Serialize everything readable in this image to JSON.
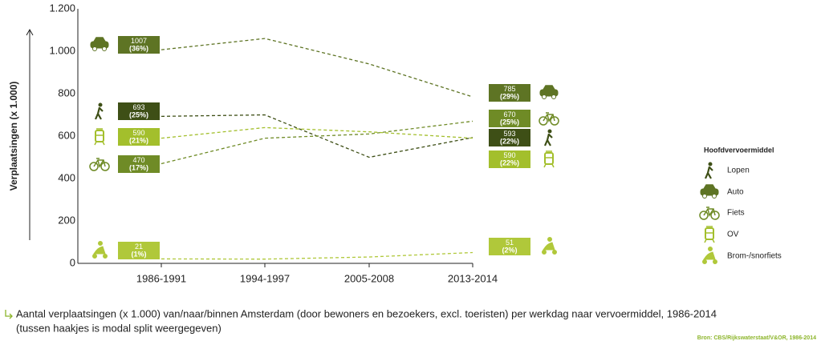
{
  "chart_data": {
    "type": "line",
    "y_label": "Verplaatsingen (x 1.000)",
    "legend_title": "Hoofdvervoermiddel",
    "legend_position": "right",
    "categories": [
      "1986-1991",
      "1994-1997",
      "2005-2008",
      "2013-2014"
    ],
    "ylim": [
      0,
      1200
    ],
    "yticks": [
      0,
      200,
      400,
      600,
      800,
      {
        "value": 1000,
        "label": "1.000"
      },
      {
        "value": 1200,
        "label": "1.200"
      }
    ],
    "series": [
      {
        "name": "Lopen",
        "color": "#3e4f16",
        "values": [
          693,
          700,
          500,
          593
        ],
        "shares": [
          "(25%)",
          null,
          null,
          "(22%)"
        ]
      },
      {
        "name": "Auto",
        "color": "#5e7424",
        "values": [
          1007,
          1060,
          940,
          785
        ],
        "shares": [
          "(36%)",
          null,
          null,
          "(29%)"
        ]
      },
      {
        "name": "Fiets",
        "color": "#6f8b26",
        "values": [
          470,
          590,
          610,
          670
        ],
        "shares": [
          "(17%)",
          null,
          null,
          "(25%)"
        ]
      },
      {
        "name": "OV",
        "color": "#a3bf2c",
        "values": [
          590,
          640,
          620,
          590
        ],
        "shares": [
          "(21%)",
          null,
          null,
          "(22%)"
        ]
      },
      {
        "name": "Brom-/snorfiets",
        "color": "#b0c83a",
        "values": [
          21,
          20,
          30,
          51
        ],
        "shares": [
          "(1%)",
          null,
          null,
          "(2%)"
        ]
      }
    ],
    "caption": "Aantal verplaatsingen (x 1.000) van/naar/binnen Amsterdam (door bewoners en bezoekers, excl. toeristen) per werkdag naar vervoermiddel, 1986-2014",
    "caption_note": "(tussen haakjes is modal split weergegeven)",
    "source": "Bron: CBS/Rijkswaterstaat/V&OR, 1986-2014"
  }
}
